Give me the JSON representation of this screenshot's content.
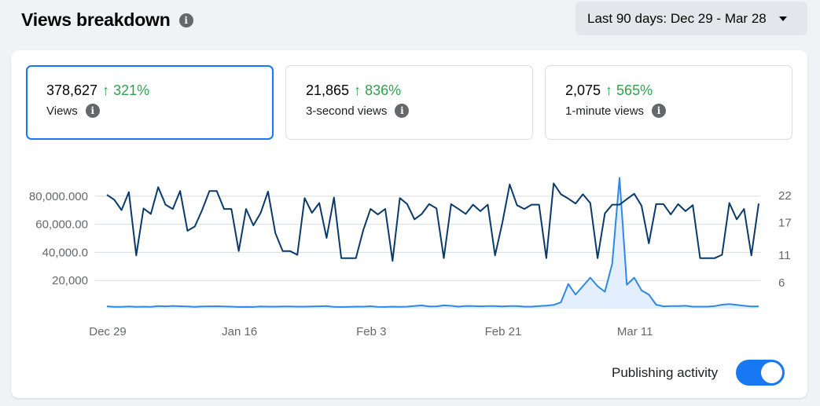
{
  "header": {
    "title": "Views breakdown",
    "info_icon": "info-icon"
  },
  "date_range": {
    "label": "Last 90 days: Dec 29 - Mar 28",
    "icon": "caret-down-icon"
  },
  "metrics": [
    {
      "value": "378,627",
      "change": "↑ 321%",
      "label": "Views",
      "selected": true
    },
    {
      "value": "21,865",
      "change": "↑ 836%",
      "label": "3-second views",
      "selected": false
    },
    {
      "value": "2,075",
      "change": "↑ 565%",
      "label": "1-minute views",
      "selected": false
    }
  ],
  "colors": {
    "accent": "#1877f2",
    "positive": "#31a24c",
    "views_line": "#0a3a6b",
    "secondary_line": "#2d88e6",
    "secondary_fill": "#e3efff",
    "grid": "#dadde1"
  },
  "chart_data": {
    "type": "line",
    "left_axis": {
      "ticks": [
        20000,
        40000,
        60000,
        80000
      ],
      "tick_labels": [
        "20,000",
        "40,000.0",
        "60,000.00",
        "80,000.000"
      ],
      "range": [
        0,
        100000
      ]
    },
    "right_axis": {
      "ticks": [
        6,
        11,
        17,
        22
      ],
      "tick_labels": [
        "6",
        "11",
        "17",
        "22"
      ],
      "range": [
        1.25,
        27
      ]
    },
    "x_labels": [
      "Dec 29",
      "Jan 16",
      "Feb 3",
      "Feb 21",
      "Mar 11"
    ],
    "x_label_indices": [
      0,
      18,
      36,
      54,
      72
    ],
    "grid": true,
    "series": [
      {
        "axis": "right",
        "values": [
          22.1,
          21.2,
          19.3,
          22.6,
          11,
          19.6,
          18.6,
          23.5,
          20.3,
          19.5,
          22.8,
          15.5,
          16.3,
          19.3,
          22.8,
          22.8,
          19.5,
          19.5,
          11.8,
          19.5,
          16.5,
          18.8,
          22.7,
          15.1,
          11.8,
          11.8,
          11.1,
          21.5,
          18.8,
          20.6,
          14.2,
          21.6,
          10.5,
          10.5,
          10.5,
          15.6,
          19.5,
          18.5,
          19.5,
          10,
          21.5,
          20.4,
          17.6,
          18.6,
          20.4,
          19.6,
          10.5,
          20.4,
          19.5,
          18.6,
          20.3,
          19.1,
          20.3,
          11,
          17,
          24,
          20.2,
          19.5,
          20.3,
          20.3,
          10.5,
          24.2,
          22.2,
          21.4,
          20.5,
          22.2,
          20.6,
          10.5,
          18.7,
          20.3,
          20.3,
          21.3,
          22.3,
          20.1,
          13.2,
          20.4,
          20.4,
          18.5,
          20.4,
          19.1,
          20.2,
          10.5,
          10.5,
          10.5,
          11.1,
          20.6,
          17.6,
          19.5,
          11,
          20.5
        ]
      },
      {
        "axis": "left",
        "values": [
          1600,
          1300,
          1300,
          1500,
          1300,
          1400,
          1300,
          1800,
          1600,
          1900,
          1700,
          1500,
          1300,
          1500,
          1600,
          1700,
          1500,
          1400,
          1200,
          1300,
          1200,
          1500,
          1400,
          1400,
          1500,
          1500,
          1400,
          1400,
          1500,
          1600,
          1800,
          1300,
          1200,
          1300,
          1400,
          1400,
          1700,
          1300,
          1200,
          1400,
          1300,
          1400,
          1900,
          2300,
          1500,
          1600,
          2300,
          2000,
          1400,
          1900,
          1800,
          1600,
          1800,
          1800,
          1500,
          1800,
          1800,
          1400,
          1400,
          1800,
          2100,
          2600,
          4500,
          17500,
          10000,
          16000,
          22000,
          16000,
          12000,
          32000,
          93000,
          17000,
          22000,
          13000,
          10000,
          2800,
          1600,
          1800,
          1800,
          2000,
          1400,
          1400,
          1400,
          1800,
          2800,
          3200,
          2600,
          2000,
          1500,
          1600
        ]
      }
    ]
  },
  "publishing_activity": {
    "label": "Publishing activity",
    "on": true
  }
}
